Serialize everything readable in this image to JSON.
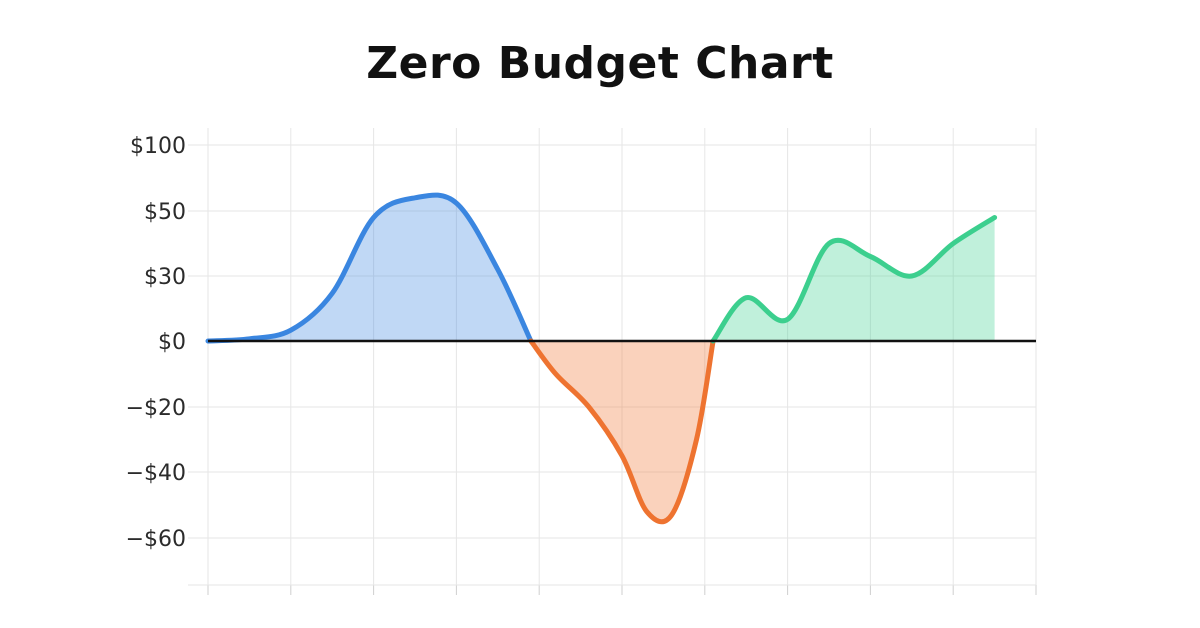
{
  "chart_data": {
    "type": "area",
    "title": "Zero Budget Chart",
    "xlabel": "",
    "ylabel": "",
    "y_ticks": [
      100,
      50,
      30,
      0,
      -20,
      -40,
      -60
    ],
    "y_tick_labels": [
      "$100",
      "$50",
      "$30",
      "$0",
      "−$20",
      "−$40",
      "−$60"
    ],
    "x_range": [
      0,
      10
    ],
    "grid": true,
    "legend": "none",
    "colors": {
      "positive_early": "#3a86e0",
      "negative": "#ee7330",
      "positive_late": "#3ccf8e",
      "zero_line": "#111111",
      "grid": "#e6e6e6"
    },
    "series": [
      {
        "color_key": "positive_early",
        "x": [
          0,
          0.5,
          1,
          1.5,
          2,
          2.5,
          3,
          3.5,
          3.9
        ],
        "y": [
          0,
          1,
          5,
          22,
          48,
          60,
          56,
          32,
          0
        ]
      },
      {
        "color_key": "negative",
        "x": [
          3.9,
          4.2,
          4.6,
          5.0,
          5.3,
          5.6,
          5.9,
          6.1
        ],
        "y": [
          0,
          -10,
          -20,
          -35,
          -52,
          -53,
          -30,
          0
        ]
      },
      {
        "color_key": "positive_late",
        "x": [
          6.1,
          6.5,
          7.0,
          7.5,
          8.0,
          8.5,
          9.0,
          9.5
        ],
        "y": [
          0,
          20,
          10,
          40,
          36,
          30,
          40,
          48
        ]
      }
    ]
  }
}
